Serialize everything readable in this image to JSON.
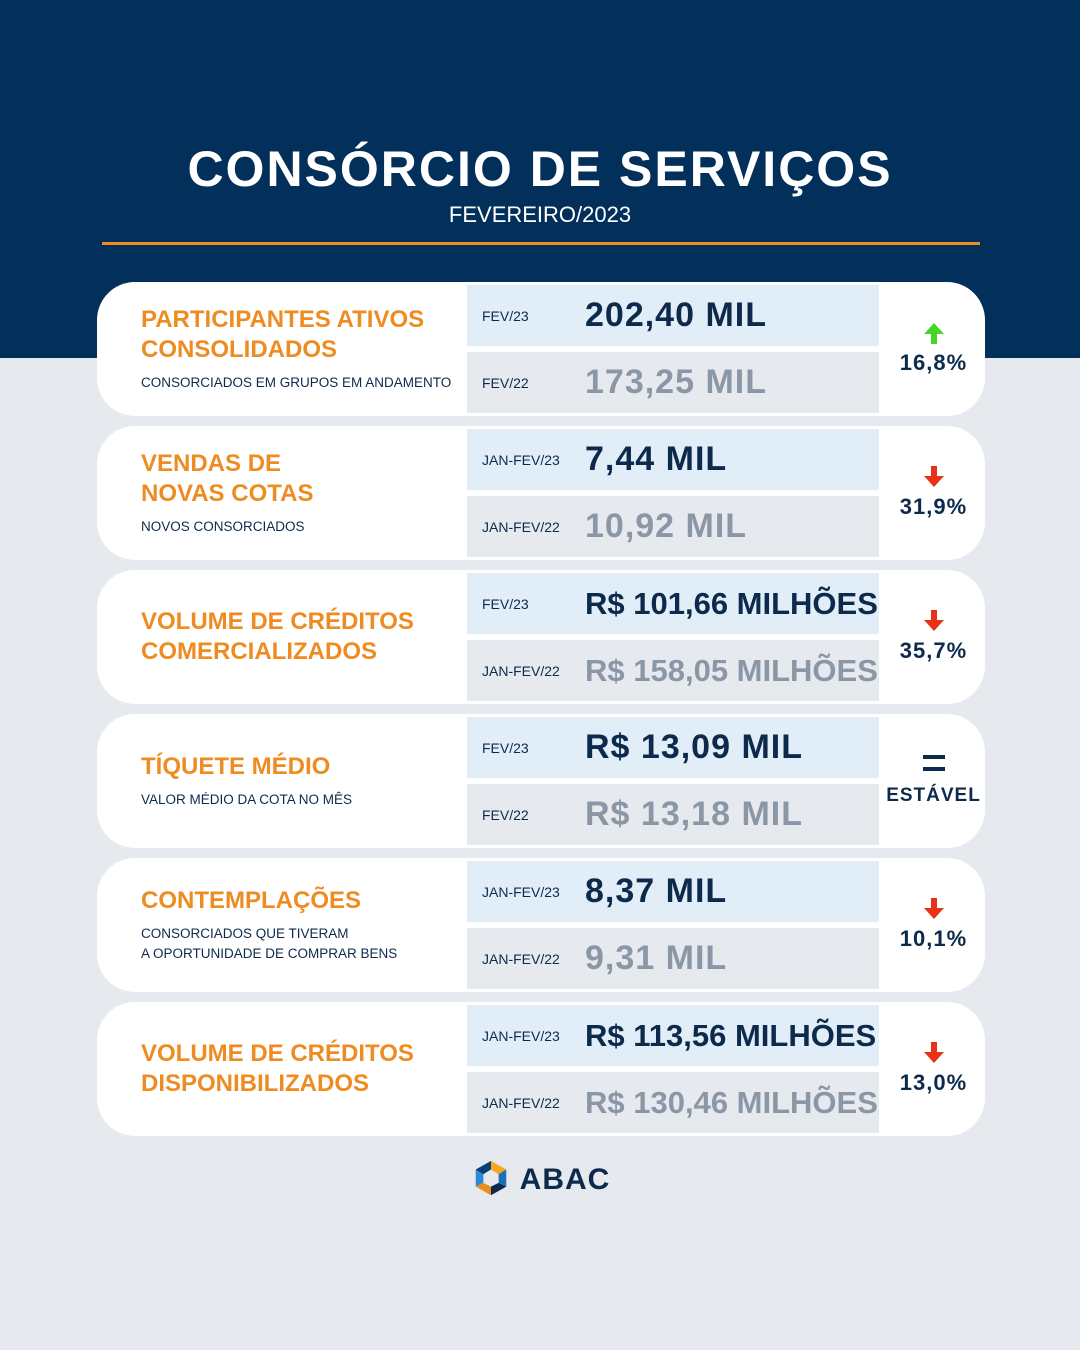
{
  "header": {
    "title": "CONSÓRCIO DE SERVIÇOS",
    "subtitle": "FEVEREIRO/2023"
  },
  "colors": {
    "navy": "#02305a",
    "orange": "#ee8c22",
    "up": "#46d62a",
    "down": "#e8321c",
    "text_dark": "#0d2a4c",
    "text_muted": "#8b97a6"
  },
  "cards": [
    {
      "title": "PARTICIPANTES ATIVOS\nCONSOLIDADOS",
      "description": "CONSORCIADOS EM GRUPOS EM ANDAMENTO",
      "current": {
        "period": "FEV/23",
        "value": "202,40 MIL"
      },
      "previous": {
        "period": "FEV/22",
        "value": "173,25 MIL"
      },
      "change": {
        "direction": "up",
        "icon": "arrow-up-icon",
        "text": "16,8%"
      }
    },
    {
      "title": "VENDAS DE\nNOVAS COTAS",
      "description": "NOVOS CONSORCIADOS",
      "current": {
        "period": "JAN-FEV/23",
        "value": "7,44 MIL"
      },
      "previous": {
        "period": "JAN-FEV/22",
        "value": "10,92 MIL"
      },
      "change": {
        "direction": "down",
        "icon": "arrow-down-icon",
        "text": "31,9%"
      }
    },
    {
      "title": "VOLUME DE CRÉDITOS\nCOMERCIALIZADOS",
      "description": "",
      "current": {
        "period": "FEV/23",
        "value": "R$ 101,66 MILHÕES"
      },
      "previous": {
        "period": "JAN-FEV/22",
        "value": "R$ 158,05 MILHÕES"
      },
      "change": {
        "direction": "down",
        "icon": "arrow-down-icon",
        "text": "35,7%"
      }
    },
    {
      "title": "TÍQUETE MÉDIO",
      "description": "VALOR MÉDIO DA COTA NO MÊS",
      "current": {
        "period": "FEV/23",
        "value": "R$ 13,09 MIL"
      },
      "previous": {
        "period": "FEV/22",
        "value": "R$ 13,18 MIL"
      },
      "change": {
        "direction": "equal",
        "icon": "equal-icon",
        "text": "ESTÁVEL"
      }
    },
    {
      "title": "CONTEMPLAÇÕES",
      "description": "CONSORCIADOS QUE TIVERAM\nA OPORTUNIDADE DE COMPRAR BENS",
      "current": {
        "period": "JAN-FEV/23",
        "value": "8,37 MIL"
      },
      "previous": {
        "period": "JAN-FEV/22",
        "value": "9,31 MIL"
      },
      "change": {
        "direction": "down",
        "icon": "arrow-down-icon",
        "text": "10,1%"
      }
    },
    {
      "title": "VOLUME DE CRÉDITOS\nDISPONIBILIZADOS",
      "description": "",
      "current": {
        "period": "JAN-FEV/23",
        "value": "R$ 113,56 MILHÕES"
      },
      "previous": {
        "period": "JAN-FEV/22",
        "value": "R$ 130,46 MILHÕES"
      },
      "change": {
        "direction": "down",
        "icon": "arrow-down-icon",
        "text": "13,0%"
      }
    }
  ],
  "footer": {
    "logo_text": "ABAC",
    "logo_icon": "abac-logo-icon"
  }
}
